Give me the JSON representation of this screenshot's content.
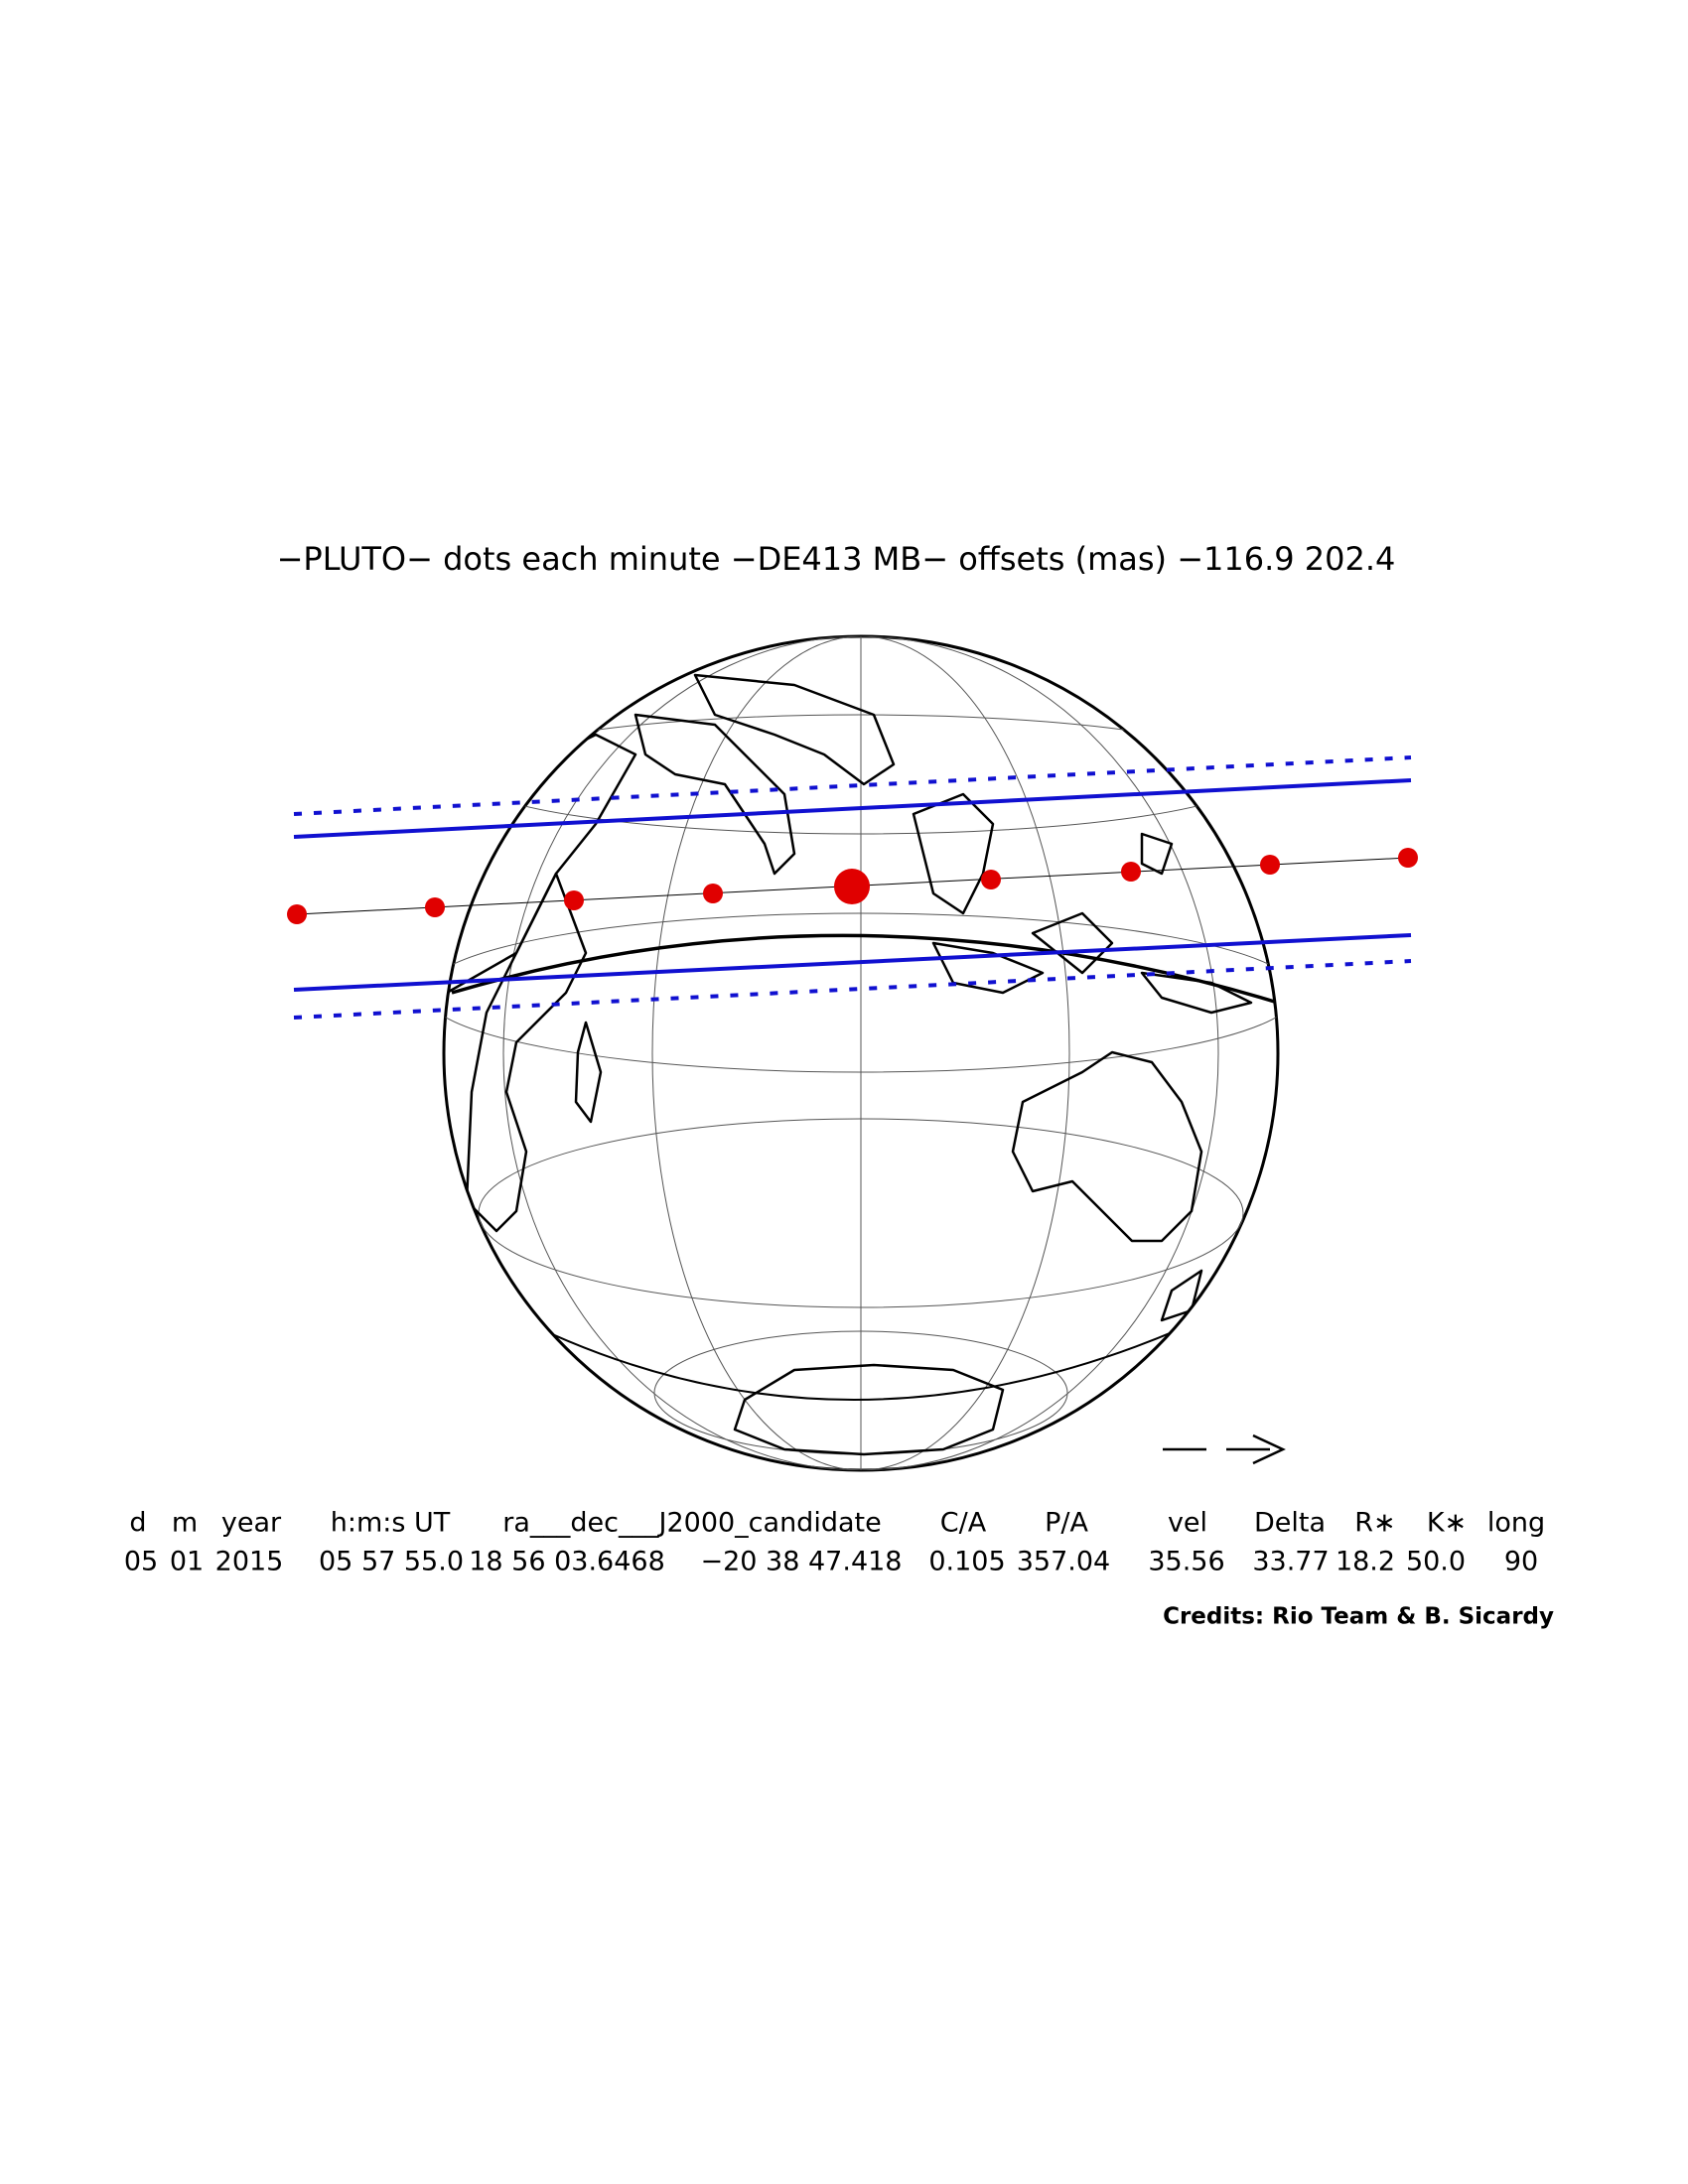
{
  "title": "−PLUTO− dots each minute −DE413 MB− offsets (mas) −116.9   202.4",
  "table": {
    "headers": [
      "d",
      "m",
      "year",
      "h:m:s UT",
      "ra___dec___J2000_candidate",
      "C/A",
      "P/A",
      "vel",
      "Delta",
      "R∗",
      "K∗",
      "long"
    ],
    "values": [
      "05",
      "01",
      "2015",
      "05 57 55.0",
      "18 56 03.6468",
      "−20 38 47.418",
      "0.105",
      "357.04",
      "35.56",
      "33.77",
      "18.2",
      "50.0",
      "90"
    ]
  },
  "credits": "Credits: Rio Team & B. Sicardy"
}
